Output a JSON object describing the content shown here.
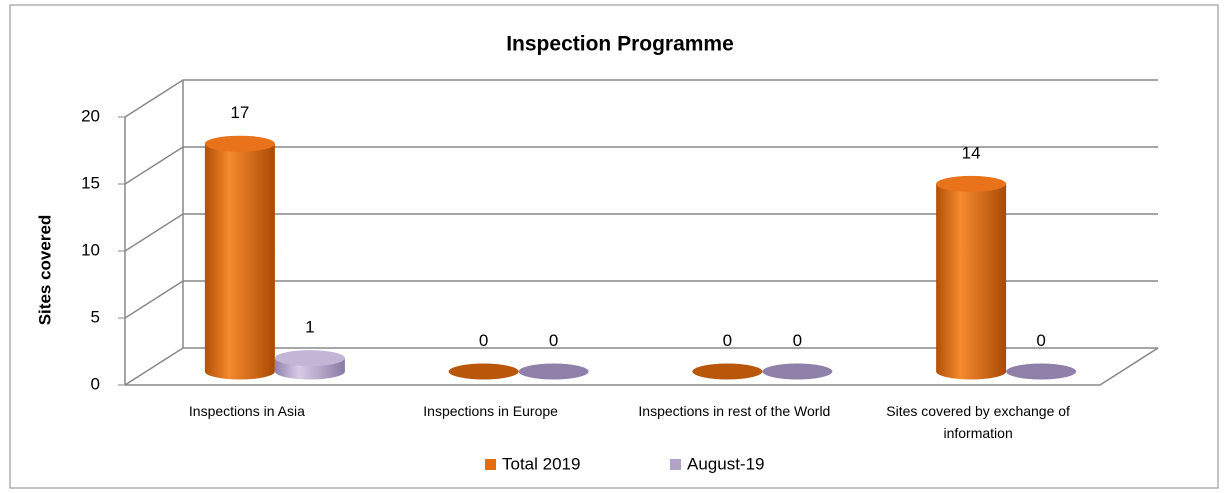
{
  "chart_data": {
    "type": "bar3d",
    "title": "Inspection Programme",
    "y_label": "Sites covered",
    "categories": [
      "Inspections in Asia",
      "Inspections in Europe",
      "Inspections in rest of the World",
      "Sites covered by exchange of information"
    ],
    "series": [
      {
        "name": "Total 2019",
        "color": "#e46c0a",
        "values": [
          17,
          0,
          0,
          14
        ]
      },
      {
        "name": "August-19",
        "color": "#b3a2c7",
        "values": [
          1,
          0,
          0,
          0
        ]
      }
    ],
    "ylim": [
      0,
      20
    ],
    "yticks": [
      0,
      5,
      10,
      15,
      20
    ],
    "grid": true,
    "legend": "bottom"
  }
}
